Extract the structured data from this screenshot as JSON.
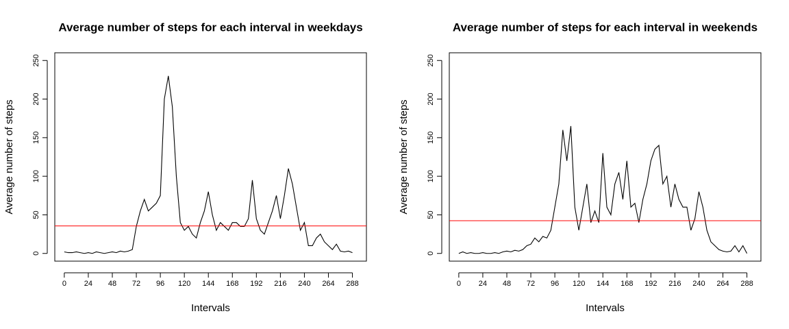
{
  "chart_data": [
    {
      "type": "line",
      "title": "Average number of steps for each interval in weekdays",
      "x_label": "Intervals",
      "y_label": "Average number of steps",
      "x": [
        0,
        4,
        8,
        12,
        16,
        20,
        24,
        28,
        32,
        36,
        40,
        44,
        48,
        52,
        56,
        60,
        64,
        68,
        72,
        76,
        80,
        84,
        88,
        92,
        96,
        100,
        104,
        108,
        112,
        116,
        120,
        124,
        128,
        132,
        136,
        140,
        144,
        148,
        152,
        156,
        160,
        164,
        168,
        172,
        176,
        180,
        184,
        188,
        192,
        196,
        200,
        204,
        208,
        212,
        216,
        220,
        224,
        228,
        232,
        236,
        240,
        244,
        248,
        252,
        256,
        260,
        264,
        268,
        272,
        276,
        280,
        284,
        288
      ],
      "series": [
        {
          "name": "weekday",
          "color": "#000000",
          "values": [
            2,
            1,
            1,
            2,
            1,
            0,
            1,
            0,
            2,
            1,
            0,
            1,
            2,
            1,
            3,
            2,
            3,
            5,
            35,
            55,
            70,
            55,
            60,
            65,
            75,
            200,
            230,
            190,
            100,
            40,
            30,
            35,
            25,
            20,
            40,
            55,
            80,
            50,
            30,
            40,
            35,
            30,
            40,
            40,
            35,
            35,
            45,
            95,
            45,
            30,
            25,
            40,
            55,
            75,
            45,
            75,
            110,
            90,
            60,
            30,
            40,
            10,
            10,
            20,
            25,
            15,
            10,
            5,
            12,
            3,
            2,
            3,
            1
          ]
        }
      ],
      "mean_line": {
        "value": 35.6,
        "color": "#ff0000"
      },
      "xlim": [
        -9.5,
        302
      ],
      "ylim": [
        -10,
        260
      ],
      "xticks": [
        0,
        24,
        48,
        72,
        96,
        120,
        144,
        168,
        192,
        216,
        240,
        264,
        288
      ],
      "yticks": [
        0,
        50,
        100,
        150,
        200,
        250
      ]
    },
    {
      "type": "line",
      "title": "Average number of steps for each interval in weekends",
      "x_label": "Intervals",
      "y_label": "Average number of steps",
      "x": [
        0,
        4,
        8,
        12,
        16,
        20,
        24,
        28,
        32,
        36,
        40,
        44,
        48,
        52,
        56,
        60,
        64,
        68,
        72,
        76,
        80,
        84,
        88,
        92,
        96,
        100,
        104,
        108,
        112,
        116,
        120,
        124,
        128,
        132,
        136,
        140,
        144,
        148,
        152,
        156,
        160,
        164,
        168,
        172,
        176,
        180,
        184,
        188,
        192,
        196,
        200,
        204,
        208,
        212,
        216,
        220,
        224,
        228,
        232,
        236,
        240,
        244,
        248,
        252,
        256,
        260,
        264,
        268,
        272,
        276,
        280,
        284,
        288
      ],
      "series": [
        {
          "name": "weekend",
          "color": "#000000",
          "values": [
            0,
            2,
            0,
            1,
            0,
            0,
            1,
            0,
            0,
            1,
            0,
            2,
            3,
            2,
            4,
            3,
            5,
            10,
            12,
            20,
            15,
            22,
            20,
            30,
            60,
            90,
            160,
            120,
            165,
            60,
            30,
            60,
            90,
            40,
            55,
            40,
            130,
            60,
            50,
            90,
            105,
            70,
            120,
            60,
            65,
            40,
            70,
            90,
            120,
            135,
            140,
            90,
            100,
            60,
            90,
            70,
            60,
            60,
            30,
            45,
            80,
            60,
            30,
            15,
            10,
            5,
            3,
            2,
            3,
            10,
            2,
            10,
            0
          ]
        }
      ],
      "mean_line": {
        "value": 42.4,
        "color": "#ff0000"
      },
      "xlim": [
        -9.5,
        302
      ],
      "ylim": [
        -10,
        260
      ],
      "xticks": [
        0,
        24,
        48,
        72,
        96,
        120,
        144,
        168,
        192,
        216,
        240,
        264,
        288
      ],
      "yticks": [
        0,
        50,
        100,
        150,
        200,
        250
      ]
    }
  ]
}
